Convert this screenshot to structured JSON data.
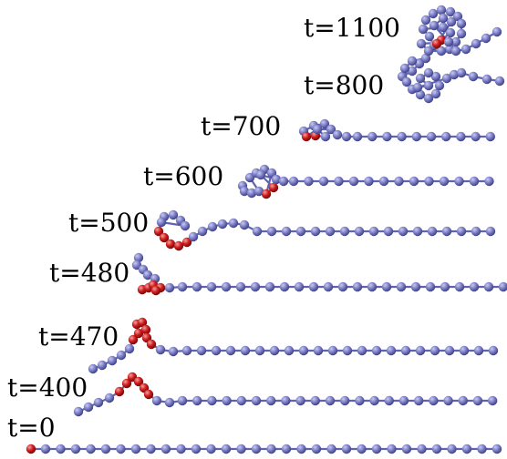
{
  "figure": {
    "frames": [
      {
        "key": "t0",
        "label": "t=0"
      },
      {
        "key": "t400",
        "label": "t=400"
      },
      {
        "key": "t470",
        "label": "t=470"
      },
      {
        "key": "t480",
        "label": "t=480"
      },
      {
        "key": "t500",
        "label": "t=500"
      },
      {
        "key": "t600",
        "label": "t=600"
      },
      {
        "key": "t700",
        "label": "t=700"
      },
      {
        "key": "t800",
        "label": "t=800"
      },
      {
        "key": "t1100",
        "label": "t=1100"
      }
    ],
    "colors": {
      "bead": "#7c7fc6",
      "bead_highlight": "#c8cbf2",
      "bead_shadow": "#45488e",
      "tagged_bead": "#d11c1c",
      "tagged_highlight": "#f2a1a1",
      "tagged_shadow": "#7d0b0b",
      "bond": "#5f63b2",
      "label_text": "#000000"
    }
  }
}
